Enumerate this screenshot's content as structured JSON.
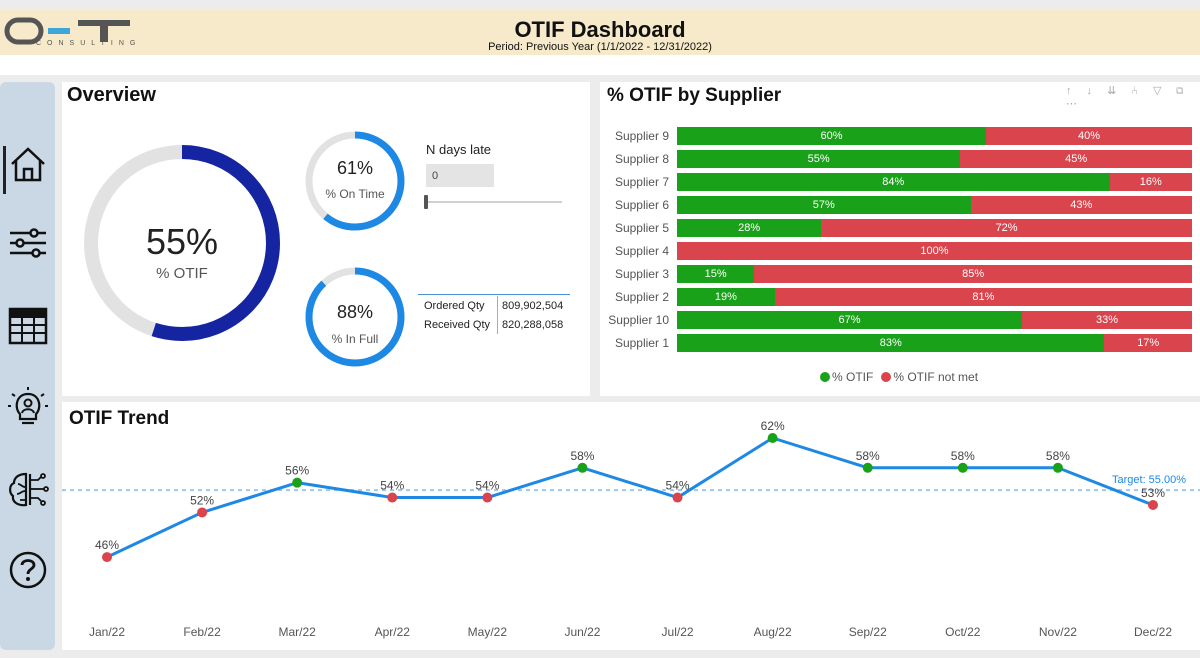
{
  "header": {
    "logo_text": "CONSULTING",
    "title": "OTIF Dashboard",
    "period": "Period: Previous Year (1/1/2022 - 12/31/2022)"
  },
  "sidebar": {
    "items": [
      {
        "name": "home",
        "icon": "home-icon"
      },
      {
        "name": "filters",
        "icon": "sliders-icon"
      },
      {
        "name": "table",
        "icon": "table-icon"
      },
      {
        "name": "insights",
        "icon": "lightbulb-person-icon"
      },
      {
        "name": "ai",
        "icon": "brain-circuit-icon"
      },
      {
        "name": "help",
        "icon": "help-icon"
      }
    ]
  },
  "overview": {
    "title": "Overview",
    "otif": {
      "value": "55%",
      "label": "% OTIF",
      "fraction": 0.55
    },
    "on_time": {
      "value": "61%",
      "label": "% On Time",
      "fraction": 0.61
    },
    "in_full": {
      "value": "88%",
      "label": "% In Full",
      "fraction": 0.88
    },
    "ndays": {
      "title": "N days late",
      "value": "0"
    },
    "quantities": [
      {
        "label": "Ordered Qty",
        "value": "809,902,504"
      },
      {
        "label": "Received Qty",
        "value": "820,288,058"
      }
    ]
  },
  "colors": {
    "otif_green": "#1aa11a",
    "not_met_red": "#d9444d",
    "gauge_dark": "#1524a0",
    "gauge_blue": "#1e88e5",
    "trend_line": "#1e88e5"
  },
  "supplier": {
    "title": "% OTIF by Supplier",
    "toolbar": "↑ ↓ ⇊ ⑃ ▽ ⧉ ⋯",
    "rows": [
      {
        "name": "Supplier 9",
        "otif": 60,
        "otif_label": "60%",
        "not_label": "40%"
      },
      {
        "name": "Supplier 8",
        "otif": 55,
        "otif_label": "55%",
        "not_label": "45%"
      },
      {
        "name": "Supplier 7",
        "otif": 84,
        "otif_label": "84%",
        "not_label": "16%"
      },
      {
        "name": "Supplier 6",
        "otif": 57,
        "otif_label": "57%",
        "not_label": "43%"
      },
      {
        "name": "Supplier 5",
        "otif": 28,
        "otif_label": "28%",
        "not_label": "72%"
      },
      {
        "name": "Supplier 4",
        "otif": 0,
        "otif_label": "",
        "not_label": "100%"
      },
      {
        "name": "Supplier 3",
        "otif": 15,
        "otif_label": "15%",
        "not_label": "85%"
      },
      {
        "name": "Supplier 2",
        "otif": 19,
        "otif_label": "19%",
        "not_label": "81%"
      },
      {
        "name": "Supplier 10",
        "otif": 67,
        "otif_label": "67%",
        "not_label": "33%"
      },
      {
        "name": "Supplier 1",
        "otif": 83,
        "otif_label": "83%",
        "not_label": "17%"
      }
    ],
    "legend": [
      {
        "label": "% OTIF",
        "color": "#1aa11a"
      },
      {
        "label": "% OTIF not met",
        "color": "#d9444d"
      }
    ]
  },
  "chart_data": {
    "type": "line",
    "title": "OTIF Trend",
    "categories": [
      "Jan/22",
      "Feb/22",
      "Mar/22",
      "Apr/22",
      "May/22",
      "Jun/22",
      "Jul/22",
      "Aug/22",
      "Sep/22",
      "Oct/22",
      "Nov/22",
      "Dec/22"
    ],
    "values": [
      46,
      52,
      56,
      54,
      54,
      58,
      54,
      62,
      58,
      58,
      58,
      53
    ],
    "labels": [
      "46%",
      "52%",
      "56%",
      "54%",
      "54%",
      "58%",
      "54%",
      "62%",
      "58%",
      "58%",
      "58%",
      "53%"
    ],
    "point_status": [
      "below",
      "below",
      "above",
      "below",
      "below",
      "above",
      "below",
      "above",
      "above",
      "above",
      "above",
      "below"
    ],
    "target": 55,
    "target_label": "Target: 55.00%",
    "ylim": [
      44,
      62
    ],
    "xlabel": "",
    "ylabel": ""
  }
}
